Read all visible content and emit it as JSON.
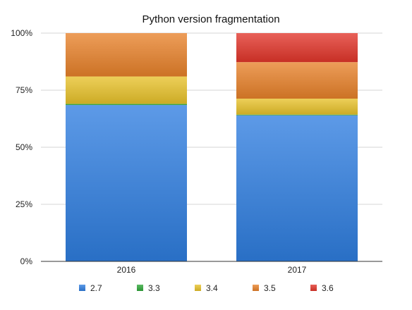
{
  "chart_data": {
    "type": "bar",
    "stacked": true,
    "title": "Python version fragmentation",
    "xlabel": "",
    "ylabel": "",
    "categories": [
      "2016",
      "2017"
    ],
    "y_ticks": [
      "0%",
      "25%",
      "50%",
      "75%",
      "100%"
    ],
    "ylim": [
      0,
      100
    ],
    "grid": true,
    "legend_position": "bottom",
    "series": [
      {
        "name": "2.7",
        "values": [
          68.5,
          64.0
        ],
        "color": "#2f7ee0"
      },
      {
        "name": "3.3",
        "values": [
          0.5,
          0.3
        ],
        "color": "#2fa83a"
      },
      {
        "name": "3.4",
        "values": [
          12.0,
          7.0
        ],
        "color": "#e8c22a"
      },
      {
        "name": "3.5",
        "values": [
          19.0,
          16.0
        ],
        "color": "#e8812a"
      },
      {
        "name": "3.6",
        "values": [
          0.0,
          12.7
        ],
        "color": "#e2352a"
      }
    ]
  }
}
